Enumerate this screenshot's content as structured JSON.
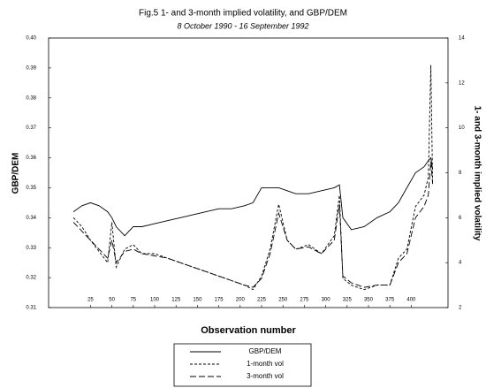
{
  "chart_data": {
    "type": "line",
    "title": "Fig.5 1- and 3-month implied volatility, and GBP/DEM",
    "subtitle": "8 October 1990 - 16 September 1992",
    "x_label": "Observation number",
    "y_label": "GBP/DEM",
    "y2_label": "1- and 3-month implied volatility",
    "x": [
      5,
      15,
      25,
      35,
      45,
      50,
      55,
      65,
      75,
      85,
      100,
      115,
      130,
      145,
      160,
      175,
      190,
      205,
      215,
      225,
      235,
      245,
      255,
      265,
      280,
      295,
      310,
      316,
      320,
      330,
      345,
      360,
      375,
      385,
      395,
      405,
      415,
      420,
      423,
      425
    ],
    "series": [
      {
        "name": "GBP/DEM",
        "color": "#000000",
        "dash": "none",
        "values": [
          0.342,
          0.344,
          0.345,
          0.344,
          0.342,
          0.34,
          0.337,
          0.334,
          0.337,
          0.337,
          0.338,
          0.339,
          0.34,
          0.341,
          0.342,
          0.343,
          0.343,
          0.344,
          0.345,
          0.35,
          0.35,
          0.35,
          0.349,
          0.348,
          0.348,
          0.349,
          0.35,
          0.351,
          0.34,
          0.336,
          0.337,
          0.34,
          0.342,
          0.345,
          0.35,
          0.355,
          0.357,
          0.359,
          0.36,
          0.356
        ]
      },
      {
        "name": "1-month vol",
        "color": "#000000",
        "dash": "3,2",
        "axis": "y2",
        "values": [
          6.0,
          5.6,
          5.0,
          4.5,
          4.0,
          5.8,
          3.8,
          4.6,
          4.8,
          4.4,
          4.4,
          4.2,
          4.0,
          3.8,
          3.6,
          3.4,
          3.2,
          3.0,
          2.8,
          3.4,
          4.6,
          6.6,
          5.0,
          4.6,
          4.8,
          4.4,
          5.2,
          7.0,
          3.3,
          3.0,
          2.8,
          3.0,
          3.0,
          4.2,
          4.6,
          6.5,
          7.0,
          7.8,
          12.8,
          7.5
        ]
      },
      {
        "name": "3-month vol",
        "color": "#000000",
        "dash": "7,3",
        "axis": "y2",
        "values": [
          5.8,
          5.4,
          5.0,
          4.6,
          4.2,
          5.0,
          4.0,
          4.5,
          4.6,
          4.4,
          4.3,
          4.2,
          4.0,
          3.8,
          3.6,
          3.4,
          3.2,
          3.0,
          2.9,
          3.3,
          4.4,
          6.2,
          5.0,
          4.6,
          4.7,
          4.4,
          5.0,
          6.6,
          3.4,
          3.1,
          2.9,
          3.0,
          3.0,
          4.0,
          4.4,
          6.0,
          6.5,
          7.0,
          8.5,
          7.5
        ]
      }
    ],
    "xlim": [
      -24,
      443
    ],
    "xticks": [
      25,
      50,
      75,
      100,
      125,
      150,
      175,
      200,
      225,
      250,
      275,
      300,
      325,
      350,
      375,
      400
    ],
    "ylim": [
      0.31,
      0.4
    ],
    "yticks": [
      {
        "value": 0.31,
        "label": "0.31"
      },
      {
        "value": 0.32,
        "label": "0.32"
      },
      {
        "value": 0.33,
        "label": "0.33"
      },
      {
        "value": 0.34,
        "label": "0.34"
      },
      {
        "value": 0.35,
        "label": "0.35"
      },
      {
        "value": 0.36,
        "label": "0.36"
      },
      {
        "value": 0.37,
        "label": "0.37"
      },
      {
        "value": 0.38,
        "label": "0.38"
      },
      {
        "value": 0.39,
        "label": "0.39"
      },
      {
        "value": 0.4,
        "label": "0.40"
      }
    ],
    "y2lim": [
      2,
      14
    ],
    "y2ticks": [
      2,
      4,
      6,
      8,
      10,
      12,
      14
    ],
    "legend": "bottom"
  }
}
